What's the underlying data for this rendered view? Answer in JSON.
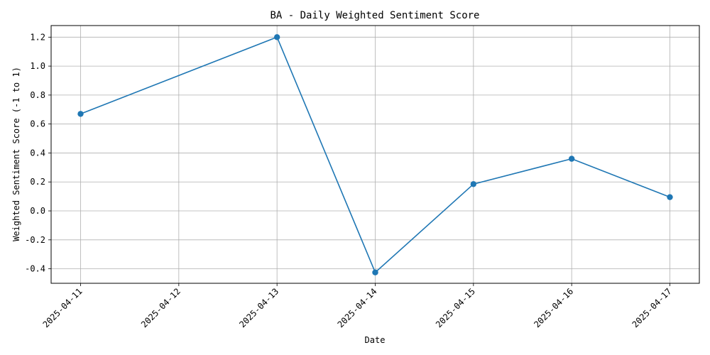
{
  "chart_data": {
    "type": "line",
    "title": "BA - Daily Weighted Sentiment Score",
    "xlabel": "Date",
    "ylabel": "Weighted Sentiment Score (-1 to 1)",
    "x": [
      "2025-04-11",
      "2025-04-12",
      "2025-04-13",
      "2025-04-14",
      "2025-04-15",
      "2025-04-16",
      "2025-04-17"
    ],
    "series": [
      {
        "x": [
          "2025-04-11",
          "2025-04-13",
          "2025-04-14",
          "2025-04-15",
          "2025-04-16",
          "2025-04-17"
        ],
        "values": [
          0.67,
          1.2,
          -0.425,
          0.185,
          0.36,
          0.095
        ],
        "color": "#1f77b4",
        "marker": "circle"
      }
    ],
    "yticks": [
      -0.4,
      -0.2,
      0.0,
      0.2,
      0.4,
      0.6,
      0.8,
      1.0,
      1.2
    ],
    "ytick_labels": [
      "-0.4",
      "-0.2",
      "0.0",
      "0.2",
      "0.4",
      "0.6",
      "0.8",
      "1.0",
      "1.2"
    ],
    "ylim": [
      -0.5,
      1.28
    ],
    "xlim": [
      "2025-04-10.7",
      "2025-04-17.3"
    ],
    "grid": true
  }
}
